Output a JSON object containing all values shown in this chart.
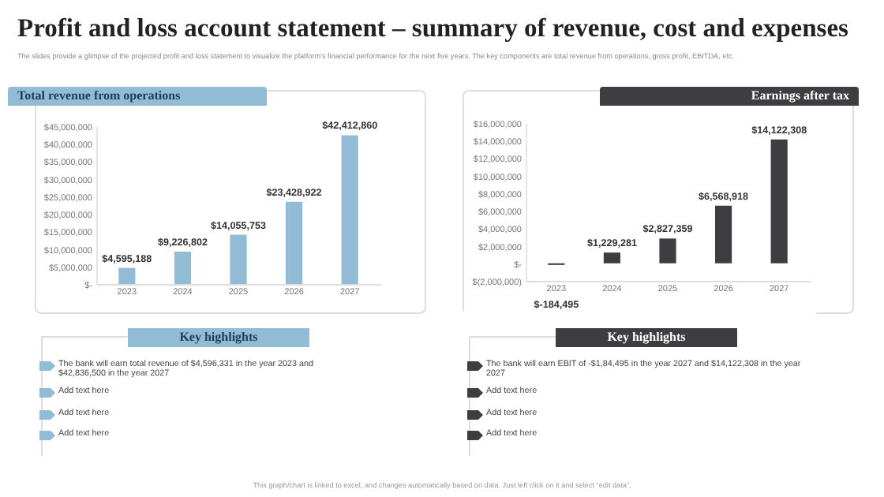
{
  "chart_data": [
    {
      "type": "other",
      "title": "Profit and loss account statement – summary of revenue, cost and expenses",
      "subtitle": "The slides provide a glimpse of the projected profit and loss statement to visualize the platform’s financial performance for the next five years. The key components are total revenue from operations, gross profit, EBITDA, etc.",
      "annotations": [
        "This graph/chart is linked to excel, and changes automatically based on data. Just left click on it and select “edit data”."
      ]
    },
    {
      "type": "bar",
      "title": "Total revenue from operations",
      "categories": [
        "2023",
        "2024",
        "2025",
        "2026",
        "2027"
      ],
      "series": [
        {
          "color": "#92bcd6",
          "values": [
            4595188,
            9226802,
            14055753,
            23428922,
            42412860
          ]
        }
      ],
      "value_labels": [
        "$4,595,188",
        "$9,226,802",
        "$14,055,753",
        "$23,428,922",
        "$42,412,860"
      ],
      "ylim": [
        0,
        45000000
      ],
      "yticks": [
        {
          "value": 0,
          "label": "$-"
        },
        {
          "value": 5000000,
          "label": "$5,000,000"
        },
        {
          "value": 10000000,
          "label": "$10,000,000"
        },
        {
          "value": 15000000,
          "label": "$15,000,000"
        },
        {
          "value": 20000000,
          "label": "$20,000,000"
        },
        {
          "value": 25000000,
          "label": "$25,000,000"
        },
        {
          "value": 30000000,
          "label": "$30,000,000"
        },
        {
          "value": 35000000,
          "label": "$35,000,000"
        },
        {
          "value": 40000000,
          "label": "$40,000,000"
        },
        {
          "value": 45000000,
          "label": "$45,000,000"
        }
      ],
      "annotations": [
        "Key highlights",
        "The bank will earn total revenue of $4,596,331 in the year 2023 and $42,836,500 in the year 2027",
        "Add text here",
        "Add text here",
        "Add text here"
      ]
    },
    {
      "type": "bar",
      "title": "Earnings after tax",
      "categories": [
        "2023",
        "2024",
        "2025",
        "2026",
        "2027"
      ],
      "series": [
        {
          "color": "#3d3d42",
          "values": [
            -184495,
            1229281,
            2827359,
            6568918,
            14122308
          ]
        }
      ],
      "value_labels": [
        "$-184,495",
        "$1,229,281",
        "$2,827,359",
        "$6,568,918",
        "$14,122,308"
      ],
      "ylim": [
        -2000000,
        16000000
      ],
      "yticks": [
        {
          "value": -2000000,
          "label": "$(2,000,000)"
        },
        {
          "value": 0,
          "label": "$-"
        },
        {
          "value": 2000000,
          "label": "$2,000,000"
        },
        {
          "value": 4000000,
          "label": "$4,000,000"
        },
        {
          "value": 6000000,
          "label": "$6,000,000"
        },
        {
          "value": 8000000,
          "label": "$8,000,000"
        },
        {
          "value": 10000000,
          "label": "$10,000,000"
        },
        {
          "value": 12000000,
          "label": "$12,000,000"
        },
        {
          "value": 14000000,
          "label": "$14,000,000"
        },
        {
          "value": 16000000,
          "label": "$16,000,000"
        }
      ],
      "annotations": [
        "Key highlights",
        "The bank will earn EBIT of -$1,84,495 in the year 2027 and $14,122,308 in the year 2027",
        "Add text here",
        "Add text here",
        "Add text here"
      ]
    }
  ]
}
